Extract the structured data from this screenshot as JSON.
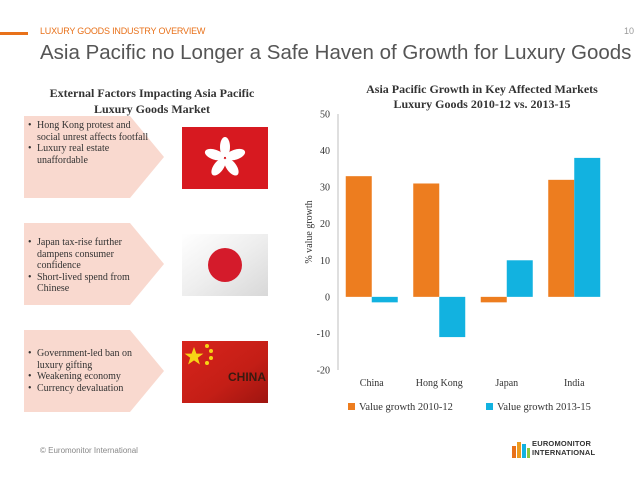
{
  "header": {
    "overline": "LUXURY GOODS INDUSTRY OVERVIEW",
    "page_number": "10",
    "title": "Asia Pacific no Longer a Safe Haven of Growth for Luxury Goods"
  },
  "left_panel": {
    "title_line1": "External Factors Impacting Asia Pacific",
    "title_line2": "Luxury Goods Market",
    "factors": [
      {
        "flag": "hong-kong",
        "bullets": [
          "Hong Kong protest and social unrest affects footfall",
          "Luxury real estate unaffordable"
        ]
      },
      {
        "flag": "japan",
        "bullets": [
          "Japan tax-rise further dampens consumer confidence",
          "Short-lived spend from Chinese"
        ]
      },
      {
        "flag": "china",
        "flag_text": "CHINA",
        "bullets": [
          "Government-led ban on luxury gifting",
          "Weakening economy",
          "Currency devaluation"
        ]
      }
    ]
  },
  "chart_data": {
    "type": "bar",
    "title_line1": "Asia Pacific  Growth in Key Affected Markets",
    "title_line2": "Luxury Goods 2010-12 vs. 2013-15",
    "categories": [
      "China",
      "Hong Kong",
      "Japan",
      "India"
    ],
    "series": [
      {
        "name": "Value growth 2010-12",
        "color": "#ed7d1f",
        "values": [
          33,
          31,
          -1.5,
          32
        ]
      },
      {
        "name": "Value growth 2013-15",
        "color": "#12b2e0",
        "values": [
          -1.5,
          -11,
          10,
          38
        ]
      }
    ],
    "ylabel": "% value growth",
    "ylim": [
      -20,
      50
    ],
    "yticks": [
      -20,
      -10,
      0,
      10,
      20,
      30,
      40,
      50
    ],
    "legend_position": "bottom",
    "grid": false
  },
  "footer": {
    "copyright": "© Euromonitor International",
    "logo_line1": "EUROMONITOR",
    "logo_line2": "INTERNATIONAL"
  },
  "colors": {
    "accent": "#e8711a",
    "arrow_fill": "#f9d9cf"
  }
}
